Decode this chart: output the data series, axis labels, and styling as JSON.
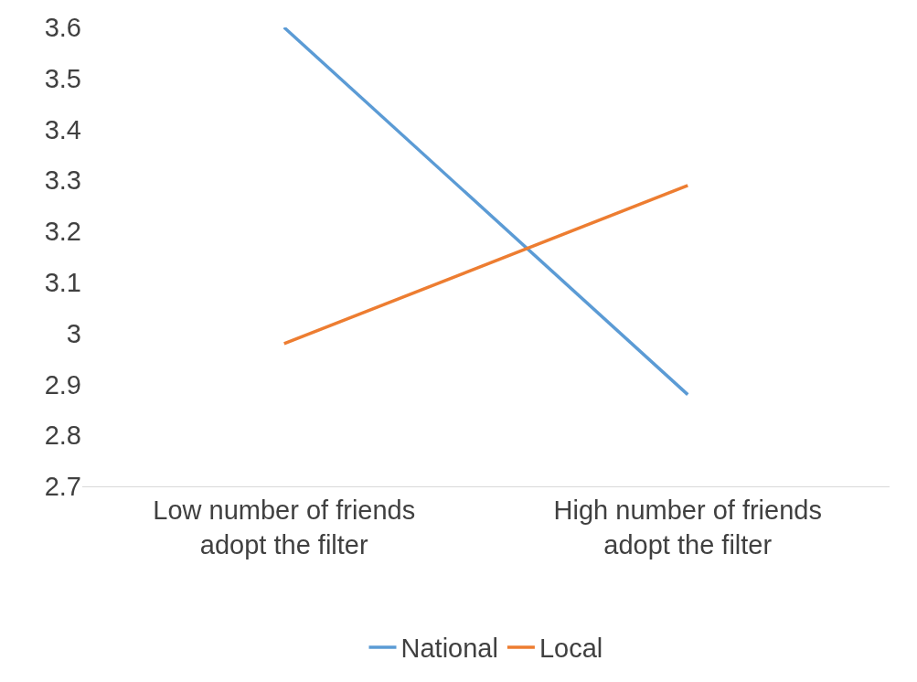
{
  "chart_data": {
    "type": "line",
    "categories": [
      "Low number of friends adopt the filter",
      "High number of friends adopt the filter"
    ],
    "series": [
      {
        "name": "National",
        "color": "#5b9bd5",
        "values": [
          3.6,
          2.88
        ]
      },
      {
        "name": "Local",
        "color": "#ed7d31",
        "values": [
          2.98,
          3.29
        ]
      }
    ],
    "ylim": [
      2.7,
      3.6
    ],
    "yticks": [
      2.7,
      2.8,
      2.9,
      3,
      3.1,
      3.2,
      3.3,
      3.4,
      3.5,
      3.6
    ],
    "grid": false,
    "legend": "bottom",
    "marker": "none",
    "line_style": "solid"
  }
}
